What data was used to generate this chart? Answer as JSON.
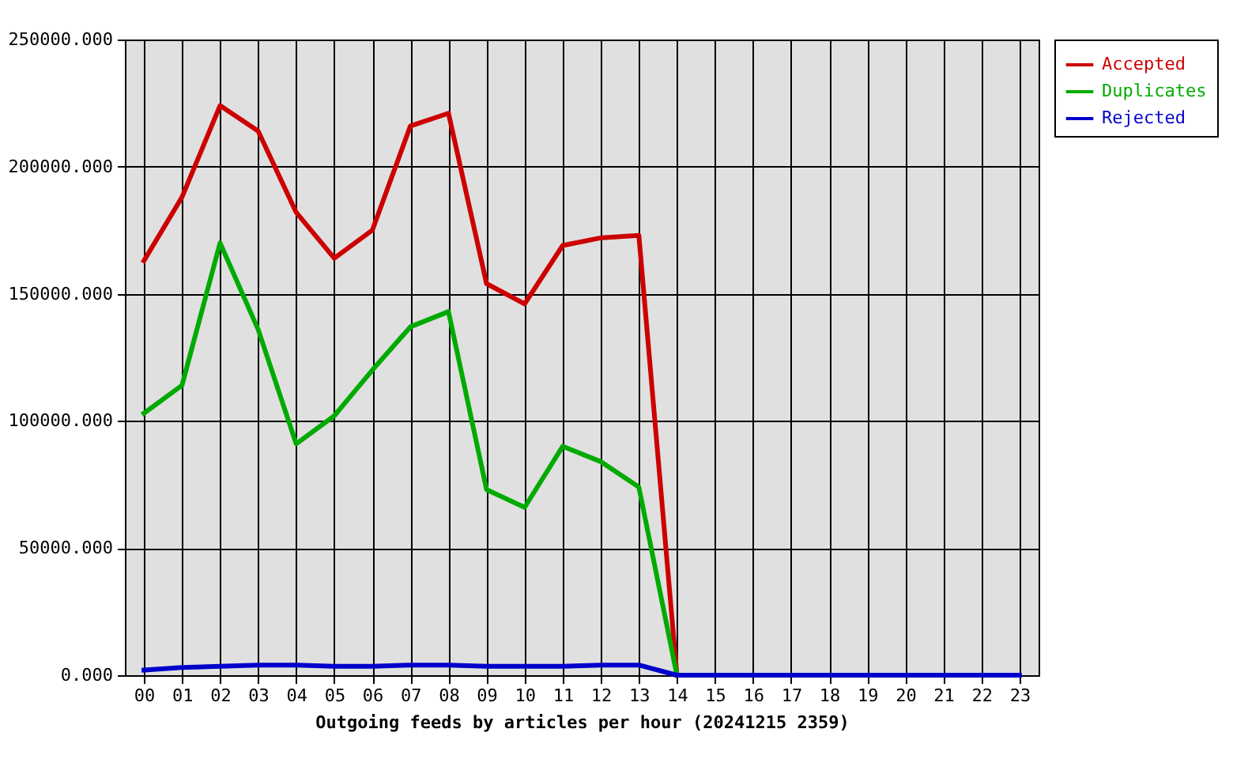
{
  "chart_data": {
    "type": "line",
    "xlabel": "Outgoing feeds by articles per hour (20241215 2359)",
    "categories": [
      "00",
      "01",
      "02",
      "03",
      "04",
      "05",
      "06",
      "07",
      "08",
      "09",
      "10",
      "11",
      "12",
      "13",
      "14",
      "15",
      "16",
      "17",
      "18",
      "19",
      "20",
      "21",
      "22",
      "23"
    ],
    "series": [
      {
        "name": "Accepted",
        "color": "#cc0000",
        "values": [
          163000,
          188000,
          224000,
          214000,
          182000,
          164000,
          175000,
          216000,
          221000,
          154000,
          146000,
          169000,
          172000,
          173000,
          0,
          null,
          null,
          null,
          null,
          null,
          null,
          null,
          null,
          null
        ]
      },
      {
        "name": "Duplicates",
        "color": "#00aa00",
        "values": [
          103000,
          114000,
          170000,
          136000,
          91000,
          102000,
          120000,
          137000,
          143000,
          73000,
          66000,
          90000,
          84000,
          74000,
          0,
          null,
          null,
          null,
          null,
          null,
          null,
          null,
          null,
          null
        ]
      },
      {
        "name": "Rejected",
        "color": "#0000cc",
        "values": [
          2000,
          3000,
          3500,
          4000,
          4000,
          3500,
          3500,
          4000,
          4000,
          3500,
          3500,
          3500,
          4000,
          4000,
          0,
          0,
          0,
          0,
          0,
          0,
          0,
          0,
          0,
          0
        ]
      }
    ],
    "ylim": [
      0,
      250000
    ],
    "yticks": [
      {
        "value": 0,
        "label": "0.000"
      },
      {
        "value": 50000,
        "label": "50000.000"
      },
      {
        "value": 100000,
        "label": "100000.000"
      },
      {
        "value": 150000,
        "label": "150000.000"
      },
      {
        "value": 200000,
        "label": "200000.000"
      },
      {
        "value": 250000,
        "label": "250000.000"
      }
    ],
    "grid": true,
    "legend": "top right",
    "line_style": "solid"
  }
}
